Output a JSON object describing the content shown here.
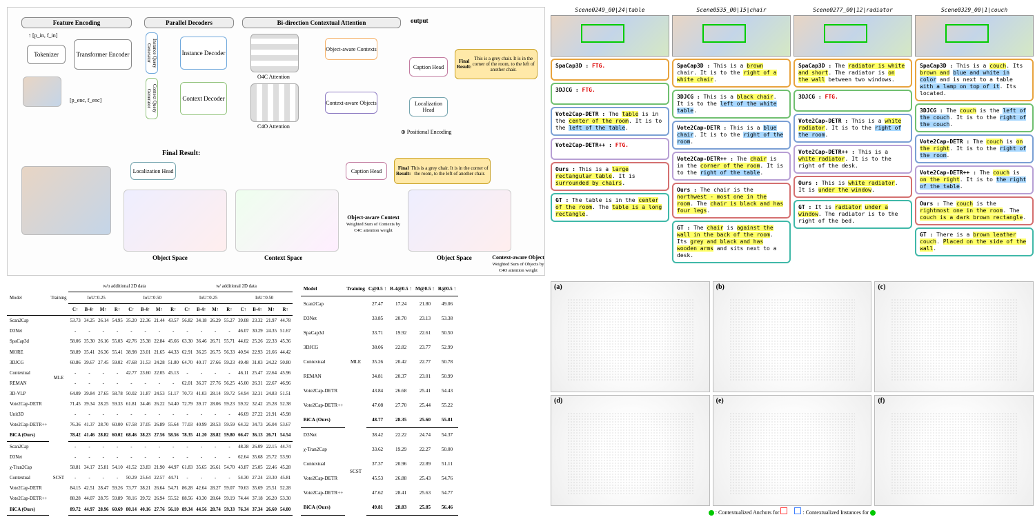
{
  "arch": {
    "feature_encoding": "Feature Encoding",
    "tokenizer": "Tokenizer",
    "transformer_encoder": "Transformer\nEncoder",
    "parallel_decoders": "Parallel Decoders",
    "instance_qg": "Instance Query Generator",
    "context_qg": "Context Query Generator",
    "instance_decoder": "Instance\nDecoder",
    "context_decoder": "Context\nDecoder",
    "bidir": "Bi-direction Contextual Attention",
    "o4c": "O4C Attention",
    "c4o": "C4O Attention",
    "obj_aware_ctx": "Object-aware\nContexts",
    "ctx_aware_obj": "Context-aware\nObjects",
    "caption_head": "Caption\nHead",
    "loc_head": "Localization\nHead",
    "output": "output",
    "pos_enc": "Positional Encoding",
    "final_result": "Final Result:",
    "final_caption": "This is a grey chair. It is in the corner of the room, to the left of another chair.",
    "object_space": "Object Space",
    "context_space": "Context Space",
    "oac_desc": "Object-aware\nContext",
    "oac_sub": "Weighted Sum of Contexts by\nC4C attention weight",
    "cao_desc": "Context-aware\nObject",
    "cao_sub": "Weighted Sum of Objects by\nC4O attention weight",
    "p_in": "↑ [p_in, f_in]",
    "p_enc": "[p_enc, f_enc]"
  },
  "qual": {
    "colors": {
      "spacap": "#e8a33d",
      "djcg": "#6fbf6f",
      "v2c": "#7a9fd4",
      "v2cpp": "#b79fd4",
      "ours": "#d46f6f",
      "gt": "#3fb8a8"
    },
    "cols": [
      {
        "title": "Scene0249_00|24|table",
        "rows": [
          {
            "m": "SpaCap3D",
            "t": "FTG.",
            "ftg": true
          },
          {
            "m": "3DJCG",
            "t": "FTG.",
            "ftg": true
          },
          {
            "m": "Vote2Cap-DETR",
            "t": "The <y>table</y> is in the <y>center of the room</y>. It is to the <b>left of the table</b>."
          },
          {
            "m": "Vote2Cap-DETR++",
            "t": "FTG.",
            "ftg": true
          },
          {
            "m": "Ours",
            "t": "This is a <y>large rectangular table</y>. It is <y>surrounded by chairs</y>."
          },
          {
            "m": "GT",
            "t": "The table is in the <y>center of the room</y>. The <y>table is a long rectangle</y>."
          }
        ]
      },
      {
        "title": "Scene0535_00|15|chair",
        "rows": [
          {
            "m": "SpaCap3D",
            "t": "This is a <y>brown</y> chair. It is to the <y>right of a white chair</y>."
          },
          {
            "m": "3DJCG",
            "t": "This is a <y>black chair</y>. It is to the <b>left of the white table</b>."
          },
          {
            "m": "Vote2Cap-DETR",
            "t": "This is a <b>blue chair</b>. It is to the <b>right of the room</b>."
          },
          {
            "m": "Vote2Cap-DETR++",
            "t": "The <y>chair</y> is in the <y>corner of the room</y>. It is to the <b>right of the table</b>."
          },
          {
            "m": "Ours",
            "t": "The chair is the <y>northwest - most one in the room</y>. The <y>chair is black and has four legs</y>."
          },
          {
            "m": "GT",
            "t": "The <y>chair</y> is <y>against the wall in the back of the room</y>. Its <y>grey and black and has wooden arms</y> and sits next to a desk."
          }
        ]
      },
      {
        "title": "Scene0277_00|12|radiator",
        "rows": [
          {
            "m": "SpaCap3D",
            "t": "The <y>radiator is white and short</y>. The radiator is <y>on the wall</y> between two windows."
          },
          {
            "m": "3DJCG",
            "t": "FTG.",
            "ftg": true
          },
          {
            "m": "Vote2Cap-DETR",
            "t": "This is a <y>white radiator</y>. It is to the <b>right of the room</b>."
          },
          {
            "m": "Vote2Cap-DETR++",
            "t": "This is a <y>white radiator</y>. It is to the right of the desk."
          },
          {
            "m": "Ours",
            "t": "This is <y>white radiator</y>. It is <y>under the window</y>."
          },
          {
            "m": "GT",
            "t": "It is <y>radiator</y> <y>under a window</y>. The radiator is to the right of the bed."
          }
        ]
      },
      {
        "title": "Scene0329_00|1|couch",
        "rows": [
          {
            "m": "SpaCap3D",
            "t": "This is a <y>couch</y>. Its <y>brown and</y> <b>blue and white in color</b> and is next to a table <b>with a lamp on top of it</b>. Its located."
          },
          {
            "m": "3DJCG",
            "t": "The <y>couch</y> is the <b>left of the couch</b>. It is to the <b>right of the couch</b>."
          },
          {
            "m": "Vote2Cap-DETR",
            "t": "The <y>couch</y> is <y>on the right</y>. It is to the <b>right of the room</b>."
          },
          {
            "m": "Vote2Cap-DETR++",
            "t": "The <y>couch</y> is <y>on the right</y>. It is to <b>the right of the table</b>."
          },
          {
            "m": "Ours",
            "t": "The <y>couch</y> is the <y>rightmost one in the room</y>. The <y>couch is a dark brown rectangle</y>."
          },
          {
            "m": "GT",
            "t": "There is a <y>brown leather couch</y>. <y>Placed on the side of the wall</y>."
          }
        ]
      }
    ]
  },
  "table1": {
    "super": [
      "w/o additional 2D data",
      "w/ additional 2D data"
    ],
    "iou": [
      "IoU=0.25",
      "IoU=0.50",
      "IoU=0.25",
      "IoU=0.50"
    ],
    "metrics": [
      "C↑",
      "B-4↑",
      "M↑",
      "R↑"
    ],
    "model_h": "Model",
    "train_h": "Training",
    "groups": [
      {
        "train": "MLE",
        "rows": [
          {
            "m": "Scan2Cap",
            "v": [
              "53.73",
              "34.25",
              "26.14",
              "54.95",
              "35.20",
              "22.36",
              "21.44",
              "43.57",
              "56.82",
              "34.18",
              "26.29",
              "55.27",
              "39.08",
              "23.32",
              "21.97",
              "44.78"
            ]
          },
          {
            "m": "D3Net",
            "v": [
              "-",
              "-",
              "-",
              "-",
              "-",
              "-",
              "-",
              "-",
              "-",
              "-",
              "-",
              "-",
              "46.07",
              "30.29",
              "24.35",
              "51.67"
            ]
          },
          {
            "m": "SpaCap3d",
            "v": [
              "58.06",
              "35.30",
              "26.16",
              "55.03",
              "42.76",
              "25.38",
              "22.84",
              "45.66",
              "63.30",
              "36.46",
              "26.71",
              "55.71",
              "44.02",
              "25.26",
              "22.33",
              "45.36"
            ]
          },
          {
            "m": "MORE",
            "v": [
              "58.89",
              "35.41",
              "26.36",
              "55.41",
              "38.98",
              "23.01",
              "21.65",
              "44.33",
              "62.91",
              "36.25",
              "26.75",
              "56.33",
              "40.94",
              "22.93",
              "21.66",
              "44.42"
            ]
          },
          {
            "m": "3DJCG",
            "v": [
              "60.86",
              "39.67",
              "27.45",
              "59.02",
              "47.68",
              "31.53",
              "24.28",
              "51.80",
              "64.70",
              "40.17",
              "27.66",
              "59.23",
              "49.48",
              "31.03",
              "24.22",
              "50.80"
            ]
          },
          {
            "m": "Contextual",
            "v": [
              "-",
              "-",
              "-",
              "-",
              "42.77",
              "23.60",
              "22.05",
              "45.13",
              "-",
              "-",
              "-",
              "-",
              "46.11",
              "25.47",
              "22.64",
              "45.96"
            ]
          },
          {
            "m": "REMAN",
            "v": [
              "-",
              "-",
              "-",
              "-",
              "-",
              "-",
              "-",
              "-",
              "62.01",
              "36.37",
              "27.76",
              "56.25",
              "45.00",
              "26.31",
              "22.67",
              "46.96"
            ]
          },
          {
            "m": "3D-VLP",
            "v": [
              "64.09",
              "39.84",
              "27.65",
              "58.78",
              "50.02",
              "31.87",
              "24.53",
              "51.17",
              "70.73",
              "41.03",
              "28.14",
              "59.72",
              "54.94",
              "32.31",
              "24.83",
              "51.51"
            ]
          },
          {
            "m": "Vote2Cap-DETR",
            "v": [
              "71.45",
              "39.34",
              "28.25",
              "59.33",
              "61.81",
              "34.46",
              "26.22",
              "54.40",
              "72.79",
              "39.17",
              "28.06",
              "59.23",
              "59.32",
              "32.42",
              "25.28",
              "52.38"
            ]
          },
          {
            "m": "Unit3D",
            "v": [
              "-",
              "-",
              "-",
              "-",
              "-",
              "-",
              "-",
              "-",
              "-",
              "-",
              "-",
              "-",
              "46.69",
              "27.22",
              "21.91",
              "45.98"
            ]
          },
          {
            "m": "Vote2Cap-DETR++",
            "v": [
              "76.36",
              "41.37",
              "28.70",
              "60.00",
              "67.58",
              "37.05",
              "26.89",
              "55.64",
              "77.03",
              "40.99",
              "28.53",
              "59.59",
              "64.32",
              "34.73",
              "26.04",
              "53.67"
            ]
          },
          {
            "m": "BiCA (Ours)",
            "v": [
              "78.42",
              "41.46",
              "28.82",
              "60.02",
              "68.46",
              "38.23",
              "27.56",
              "58.56",
              "78.35",
              "41.20",
              "28.82",
              "59.80",
              "66.47",
              "36.13",
              "26.71",
              "54.54"
            ],
            "b": true
          }
        ]
      },
      {
        "train": "SCST",
        "rows": [
          {
            "m": "Scan2Cap",
            "v": [
              "-",
              "-",
              "-",
              "-",
              "-",
              "-",
              "-",
              "-",
              "-",
              "-",
              "-",
              "-",
              "48.38",
              "26.09",
              "22.15",
              "44.74"
            ]
          },
          {
            "m": "D3Net",
            "v": [
              "-",
              "-",
              "-",
              "-",
              "-",
              "-",
              "-",
              "-",
              "-",
              "-",
              "-",
              "-",
              "62.64",
              "35.68",
              "25.72",
              "53.90"
            ]
          },
          {
            "m": "χ-Tran2Cap",
            "v": [
              "58.81",
              "34.17",
              "25.81",
              "54.10",
              "41.52",
              "23.83",
              "21.90",
              "44.97",
              "61.83",
              "35.65",
              "26.61",
              "54.70",
              "43.87",
              "25.05",
              "22.46",
              "45.28"
            ]
          },
          {
            "m": "Contextual",
            "v": [
              "-",
              "-",
              "-",
              "-",
              "50.29",
              "25.64",
              "22.57",
              "44.71",
              "-",
              "-",
              "-",
              "-",
              "54.30",
              "27.24",
              "23.30",
              "45.81"
            ]
          },
          {
            "m": "Vote2Cap-DETR",
            "v": [
              "84.15",
              "42.51",
              "28.47",
              "59.26",
              "73.77",
              "38.21",
              "26.64",
              "54.71",
              "86.28",
              "42.64",
              "28.27",
              "59.07",
              "70.63",
              "35.69",
              "25.51",
              "52.28"
            ]
          },
          {
            "m": "Vote2Cap-DETR++",
            "v": [
              "88.28",
              "44.07",
              "28.75",
              "59.89",
              "78.16",
              "39.72",
              "26.94",
              "55.52",
              "88.56",
              "43.30",
              "28.64",
              "59.19",
              "74.44",
              "37.18",
              "26.20",
              "53.30"
            ]
          },
          {
            "m": "BiCA (Ours)",
            "v": [
              "89.72",
              "44.97",
              "28.96",
              "60.69",
              "80.14",
              "40.16",
              "27.76",
              "56.10",
              "89.34",
              "44.56",
              "28.74",
              "59.33",
              "76.34",
              "37.34",
              "26.60",
              "54.00"
            ],
            "b": true
          }
        ]
      }
    ]
  },
  "table2": {
    "head": [
      "Model",
      "Training",
      "C@0.5 ↑",
      "B-4@0.5 ↑",
      "M@0.5 ↑",
      "R@0.5 ↑"
    ],
    "groups": [
      {
        "train": "MLE",
        "rows": [
          {
            "m": "Scan2Cap",
            "v": [
              "27.47",
              "17.24",
              "21.80",
              "49.06"
            ]
          },
          {
            "m": "D3Net",
            "v": [
              "33.85",
              "20.70",
              "23.13",
              "53.38"
            ]
          },
          {
            "m": "SpaCap3d",
            "v": [
              "33.71",
              "19.92",
              "22.61",
              "50.50"
            ]
          },
          {
            "m": "3DJCG",
            "v": [
              "38.06",
              "22.82",
              "23.77",
              "52.99"
            ]
          },
          {
            "m": "Contextual",
            "v": [
              "35.26",
              "20.42",
              "22.77",
              "50.78"
            ]
          },
          {
            "m": "REMAN",
            "v": [
              "34.81",
              "20.37",
              "23.01",
              "50.99"
            ]
          },
          {
            "m": "Vote2Cap-DETR",
            "v": [
              "43.84",
              "26.68",
              "25.41",
              "54.43"
            ]
          },
          {
            "m": "Vote2Cap-DETR++",
            "v": [
              "47.08",
              "27.70",
              "25.44",
              "55.22"
            ]
          },
          {
            "m": "BiCA (Ours)",
            "v": [
              "48.77",
              "28.35",
              "25.60",
              "55.81"
            ],
            "b": true
          }
        ]
      },
      {
        "train": "SCST",
        "rows": [
          {
            "m": "D3Net",
            "v": [
              "38.42",
              "22.22",
              "24.74",
              "54.37"
            ]
          },
          {
            "m": "χ-Tran2Cap",
            "v": [
              "33.62",
              "19.29",
              "22.27",
              "50.00"
            ]
          },
          {
            "m": "Contextual",
            "v": [
              "37.37",
              "20.96",
              "22.89",
              "51.11"
            ]
          },
          {
            "m": "Vote2Cap-DETR",
            "v": [
              "45.53",
              "26.88",
              "25.43",
              "54.76"
            ]
          },
          {
            "m": "Vote2Cap-DETR++",
            "v": [
              "47.62",
              "28.41",
              "25.63",
              "54.77"
            ]
          },
          {
            "m": "BiCA (Ours)",
            "v": [
              "49.81",
              "28.83",
              "25.85",
              "56.46"
            ],
            "b": true
          }
        ]
      }
    ]
  },
  "viz": {
    "labels": [
      "(a)",
      "(b)",
      "(c)",
      "(d)",
      "(e)",
      "(f)"
    ],
    "legend_ctx": "Contextualized Anchors for",
    "legend_inst": "Contextualized Instances for",
    "green": "#00c800",
    "blue": "#4080ff",
    "red": "#ff4040"
  }
}
